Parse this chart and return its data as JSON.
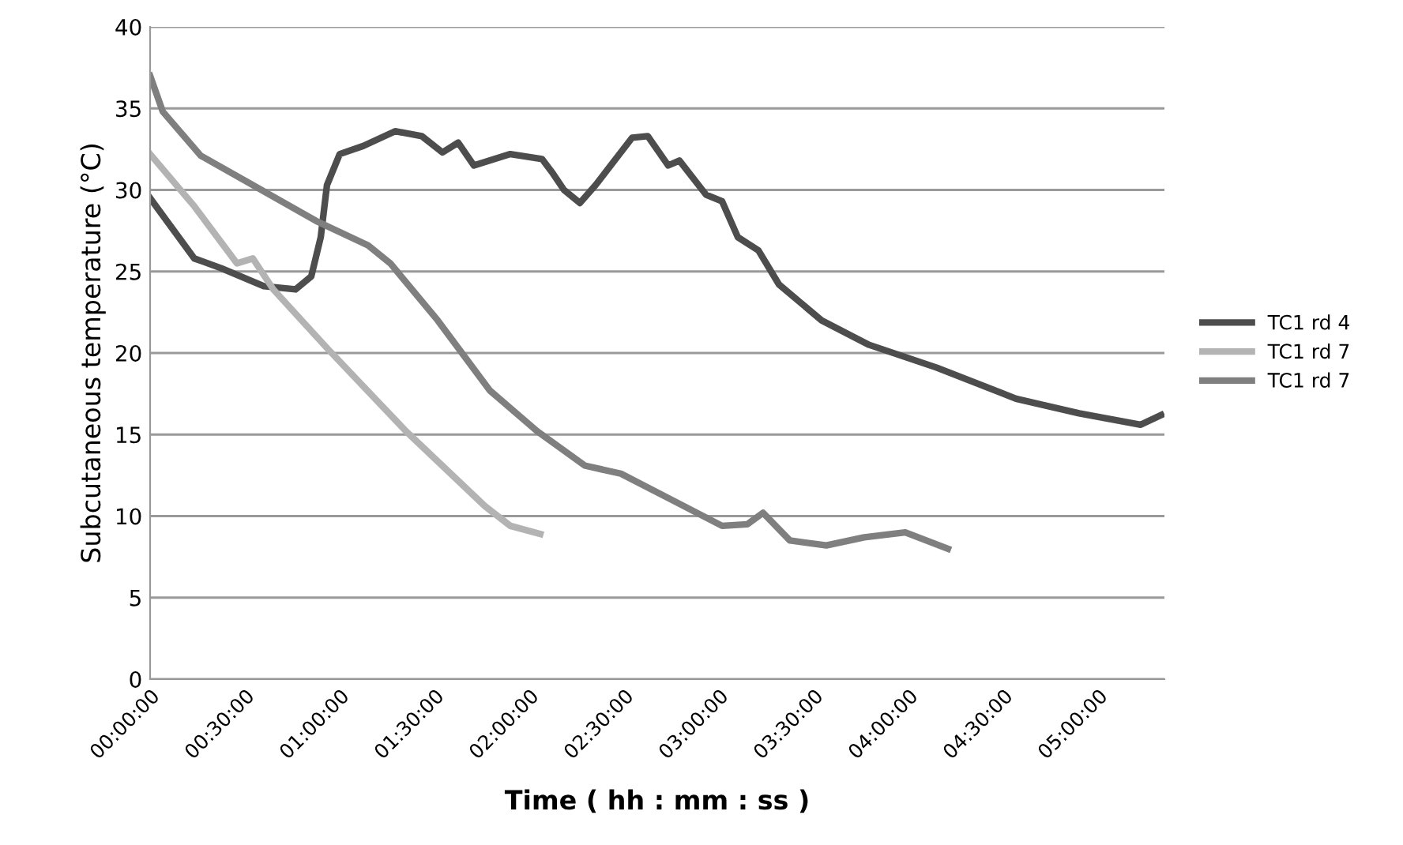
{
  "chart_data": {
    "type": "line",
    "xlabel": "Time ( hh : mm : ss )",
    "ylabel": "Subcutaneous temperature (°C)",
    "xlim": [
      0,
      5.35
    ],
    "ylim": [
      0,
      40
    ],
    "yticks": [
      0,
      5,
      10,
      15,
      20,
      25,
      30,
      35,
      40
    ],
    "xticks": [
      {
        "value": 0,
        "label": "00:00:00"
      },
      {
        "value": 0.5,
        "label": "00:30:00"
      },
      {
        "value": 1,
        "label": "01:00:00"
      },
      {
        "value": 1.5,
        "label": "01:30:00"
      },
      {
        "value": 2,
        "label": "02:00:00"
      },
      {
        "value": 2.5,
        "label": "02:30:00"
      },
      {
        "value": 3,
        "label": "03:00:00"
      },
      {
        "value": 3.5,
        "label": "03:30:00"
      },
      {
        "value": 4,
        "label": "04:00:00"
      },
      {
        "value": 4.5,
        "label": "04:30:00"
      },
      {
        "value": 5,
        "label": "05:00:00"
      }
    ],
    "grid": "y",
    "legend": "right",
    "marker": "none",
    "line_style": "solid",
    "series": [
      {
        "name": "TC1 rd 4",
        "color": "#4d4d4d",
        "x": [
          0,
          0.233,
          0.375,
          0.6,
          0.767,
          0.85,
          0.9,
          0.933,
          1.0,
          1.125,
          1.292,
          1.433,
          1.542,
          1.625,
          1.708,
          1.9,
          2.067,
          2.125,
          2.183,
          2.267,
          2.35,
          2.542,
          2.625,
          2.733,
          2.792,
          2.933,
          3.017,
          3.1,
          3.208,
          3.317,
          3.542,
          3.792,
          4.15,
          4.567,
          4.9,
          5.225,
          5.333
        ],
        "values": [
          29.5,
          25.8,
          25.2,
          24.1,
          23.9,
          24.7,
          27.1,
          30.3,
          32.2,
          32.7,
          33.6,
          33.3,
          32.3,
          32.9,
          31.5,
          32.2,
          31.9,
          31.0,
          30.0,
          29.2,
          30.3,
          33.2,
          33.3,
          31.5,
          31.8,
          29.7,
          29.3,
          27.1,
          26.3,
          24.2,
          22.0,
          20.5,
          19.1,
          17.2,
          16.3,
          15.6,
          16.2
        ]
      },
      {
        "name": "TC1 rd 7",
        "color": "#b3b3b3",
        "x": [
          0,
          0.233,
          0.458,
          0.542,
          0.65,
          0.933,
          1.35,
          1.767,
          1.9,
          2.058
        ],
        "values": [
          32.2,
          29.0,
          25.5,
          25.8,
          23.9,
          20.3,
          15.2,
          10.6,
          9.4,
          8.9
        ]
      },
      {
        "name": "TC1 rd 7",
        "color": "#7f7f7f",
        "x": [
          0,
          0.067,
          0.267,
          0.542,
          0.875,
          1.15,
          1.267,
          1.517,
          1.792,
          2.042,
          2.292,
          2.483,
          2.767,
          3.017,
          3.15,
          3.233,
          3.375,
          3.567,
          3.767,
          3.983,
          4.208
        ],
        "values": [
          37.0,
          34.8,
          32.1,
          30.3,
          28.1,
          26.6,
          25.5,
          22.0,
          17.7,
          15.2,
          13.1,
          12.6,
          10.9,
          9.4,
          9.5,
          10.2,
          8.5,
          8.2,
          8.7,
          9.0,
          8.0
        ]
      }
    ]
  }
}
